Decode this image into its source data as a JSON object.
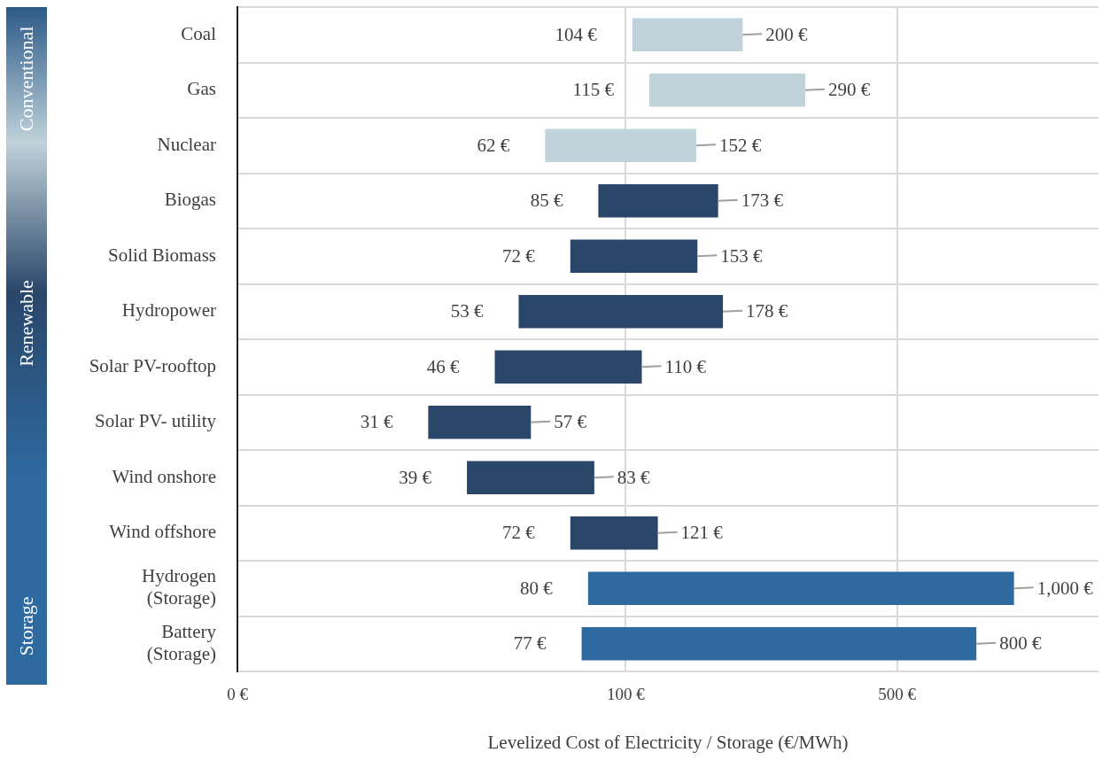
{
  "chart_data": {
    "type": "bar",
    "orientation": "horizontal",
    "log": "x",
    "xlabel": "Levelized Cost of Electricity / Storage (€/MWh)",
    "categories": [
      "Coal",
      "Gas",
      "Nuclear",
      "Biogas",
      "Solid Biomass",
      "Hydropower",
      "Solar PV-rooftop",
      "Solar PV- utility",
      "Wind onshore",
      "Wind offshore",
      "Hydrogen\n(Storage)",
      "Battery\n(Storage)"
    ],
    "base": [
      104,
      115,
      62,
      85,
      72,
      53,
      46,
      31,
      39,
      72,
      80,
      77
    ],
    "values": [
      96,
      175,
      90,
      88,
      81,
      125,
      64,
      26,
      44,
      49,
      920,
      723
    ],
    "colors": [
      "#c0d2da",
      "#c0d2da",
      "#c0d2da",
      "#2a4669",
      "#2a4669",
      "#2a4669",
      "#2a4669",
      "#2a4669",
      "#2a4669",
      "#2a4669",
      "#2e6aa0",
      "#2e6aa0"
    ],
    "value_labels": [
      "200 €",
      "290 €",
      "152 €",
      "173 €",
      "153 €",
      "178 €",
      "110 €",
      "57 €",
      "83 €",
      "121 €",
      "1,000 €",
      "800 €"
    ],
    "xlim": [
      0,
      1650
    ],
    "xticks": [
      {
        "value": 0,
        "label": "0 €"
      },
      {
        "value": 100,
        "label": "100 €"
      },
      {
        "value": 500,
        "label": "500 €"
      }
    ],
    "grid": true,
    "annotations": [
      "Conventional",
      "Renewable",
      "Storage",
      {
        "text": "104 €",
        "x": 104,
        "y": "Coal"
      },
      {
        "text": "115 €",
        "x": 115,
        "y": "Gas"
      },
      {
        "text": "62 €",
        "x": 62,
        "y": "Nuclear"
      },
      {
        "text": "85 €",
        "x": 85,
        "y": "Biogas"
      },
      {
        "text": "72 €",
        "x": 72,
        "y": "Solid Biomass"
      },
      {
        "text": "53 €",
        "x": 53,
        "y": "Hydropower"
      },
      {
        "text": "46 €",
        "x": 46,
        "y": "Solar PV-rooftop"
      },
      {
        "text": "31 €",
        "x": 31,
        "y": "Solar PV- utility"
      },
      {
        "text": "39 €",
        "x": 39,
        "y": "Wind onshore"
      },
      {
        "text": "72 €",
        "x": 72,
        "y": "Wind offshore"
      },
      {
        "text": "80 €",
        "x": 80,
        "y": "Hydrogen\n(Storage)"
      },
      {
        "text": "77 €",
        "x": 77,
        "y": "Battery\n(Storage)"
      }
    ]
  }
}
